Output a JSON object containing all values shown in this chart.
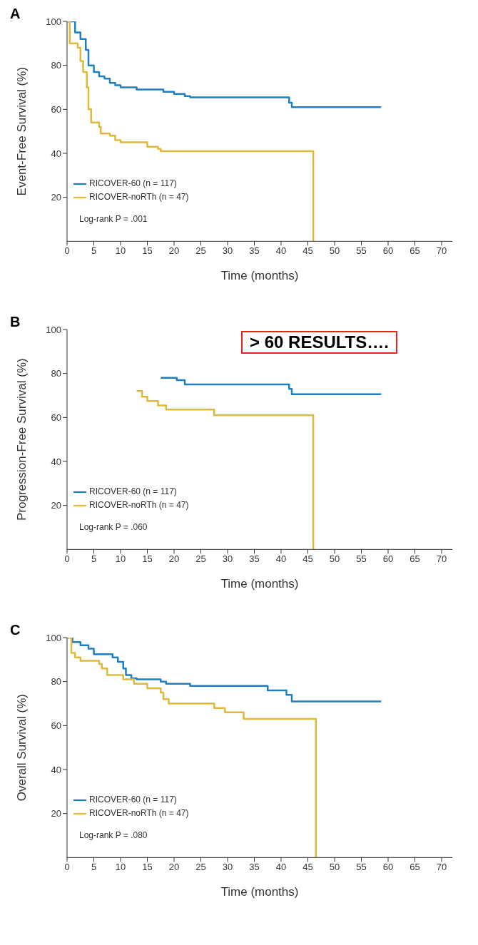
{
  "chart_data": [
    {
      "type": "step",
      "title": "A",
      "xlabel": "Time (months)",
      "ylabel": "Event-Free Survival (%)",
      "xlim": [
        0,
        72
      ],
      "xticks": [
        0,
        5,
        10,
        15,
        20,
        25,
        30,
        35,
        40,
        45,
        50,
        55,
        60,
        65,
        70
      ],
      "ylim": [
        0,
        100
      ],
      "yticks": [
        20,
        40,
        60,
        80,
        100
      ],
      "legend": "bottom left",
      "annotations": [
        "Log-rank P = .001"
      ],
      "series": [
        {
          "name": "RICOVER-60 (n = 117)",
          "color": "#1f7fc0",
          "x": [
            0,
            1.5,
            2.5,
            3.5,
            4,
            5,
            6,
            7,
            8,
            9,
            10,
            13,
            18,
            20,
            22,
            23,
            41.5,
            42,
            58.7
          ],
          "values": [
            100,
            95,
            92,
            87,
            80,
            77,
            75,
            74,
            72,
            71,
            70,
            69,
            68,
            67,
            66,
            65.5,
            63,
            61,
            61
          ]
        },
        {
          "name": "RICOVER-noRTh (n = 47)",
          "color": "#e0b93a",
          "x": [
            0,
            0.5,
            2,
            2.5,
            3,
            3.7,
            4,
            4.5,
            6,
            6.3,
            8,
            9,
            10,
            15,
            17,
            17.5,
            46,
            46.01
          ],
          "values": [
            100,
            90,
            88,
            82,
            77,
            70,
            60,
            54,
            52,
            49,
            48,
            46,
            45,
            43,
            42,
            41,
            41,
            0
          ]
        }
      ]
    },
    {
      "type": "step",
      "title": "B",
      "xlabel": "Time (months)",
      "ylabel": "Progression-Free Survival (%)",
      "xlim": [
        0,
        72
      ],
      "xticks": [
        0,
        5,
        10,
        15,
        20,
        25,
        30,
        35,
        40,
        45,
        50,
        55,
        60,
        65,
        70
      ],
      "ylim": [
        0,
        100
      ],
      "yticks": [
        20,
        40,
        60,
        80,
        100
      ],
      "legend": "bottom left",
      "annotations": [
        "Log-rank P = .060",
        "> 60 RESULTS…."
      ],
      "series": [
        {
          "name": "RICOVER-60 (n = 117)",
          "color": "#1f7fc0",
          "x": [
            17.5,
            20.5,
            22,
            41.5,
            42,
            58.7
          ],
          "values": [
            78,
            77,
            75,
            73,
            70.6,
            70.6
          ]
        },
        {
          "name": "RICOVER-noRTh (n = 47)",
          "color": "#e0b93a",
          "x": [
            13,
            14,
            15,
            17,
            18.5,
            27.5,
            46,
            46.01
          ],
          "values": [
            72,
            69.4,
            67.5,
            65.5,
            63.6,
            61,
            61,
            0
          ]
        }
      ]
    },
    {
      "type": "step",
      "title": "C",
      "xlabel": "Time (months)",
      "ylabel": "Overall Survival (%)",
      "xlim": [
        0,
        72
      ],
      "xticks": [
        0,
        5,
        10,
        15,
        20,
        25,
        30,
        35,
        40,
        45,
        50,
        55,
        60,
        65,
        70
      ],
      "ylim": [
        0,
        100
      ],
      "yticks": [
        20,
        40,
        60,
        80,
        100
      ],
      "legend": "bottom left",
      "annotations": [
        "Log-rank P = .080"
      ],
      "series": [
        {
          "name": "RICOVER-60 (n = 117)",
          "color": "#1f7fc0",
          "x": [
            0,
            1,
            2.5,
            4,
            5,
            8.5,
            9.5,
            10.5,
            11,
            12,
            13,
            17.5,
            18.5,
            23,
            37.5,
            41,
            42,
            58.7
          ],
          "values": [
            100,
            98,
            96.5,
            95,
            92.5,
            91,
            89,
            86,
            83,
            81.5,
            81,
            80,
            79,
            78,
            76,
            74,
            71,
            71
          ]
        },
        {
          "name": "RICOVER-noRTh (n = 47)",
          "color": "#e0b93a",
          "x": [
            0,
            0.8,
            1.5,
            2.5,
            6,
            6.5,
            7.5,
            10.5,
            12.5,
            15,
            17.5,
            18,
            19,
            27.5,
            29.5,
            33,
            46.5,
            46.51
          ],
          "values": [
            100,
            93,
            91,
            89.5,
            88,
            86,
            83,
            81,
            79,
            77,
            75,
            72,
            70,
            68,
            66,
            63,
            63,
            0
          ]
        }
      ]
    }
  ]
}
